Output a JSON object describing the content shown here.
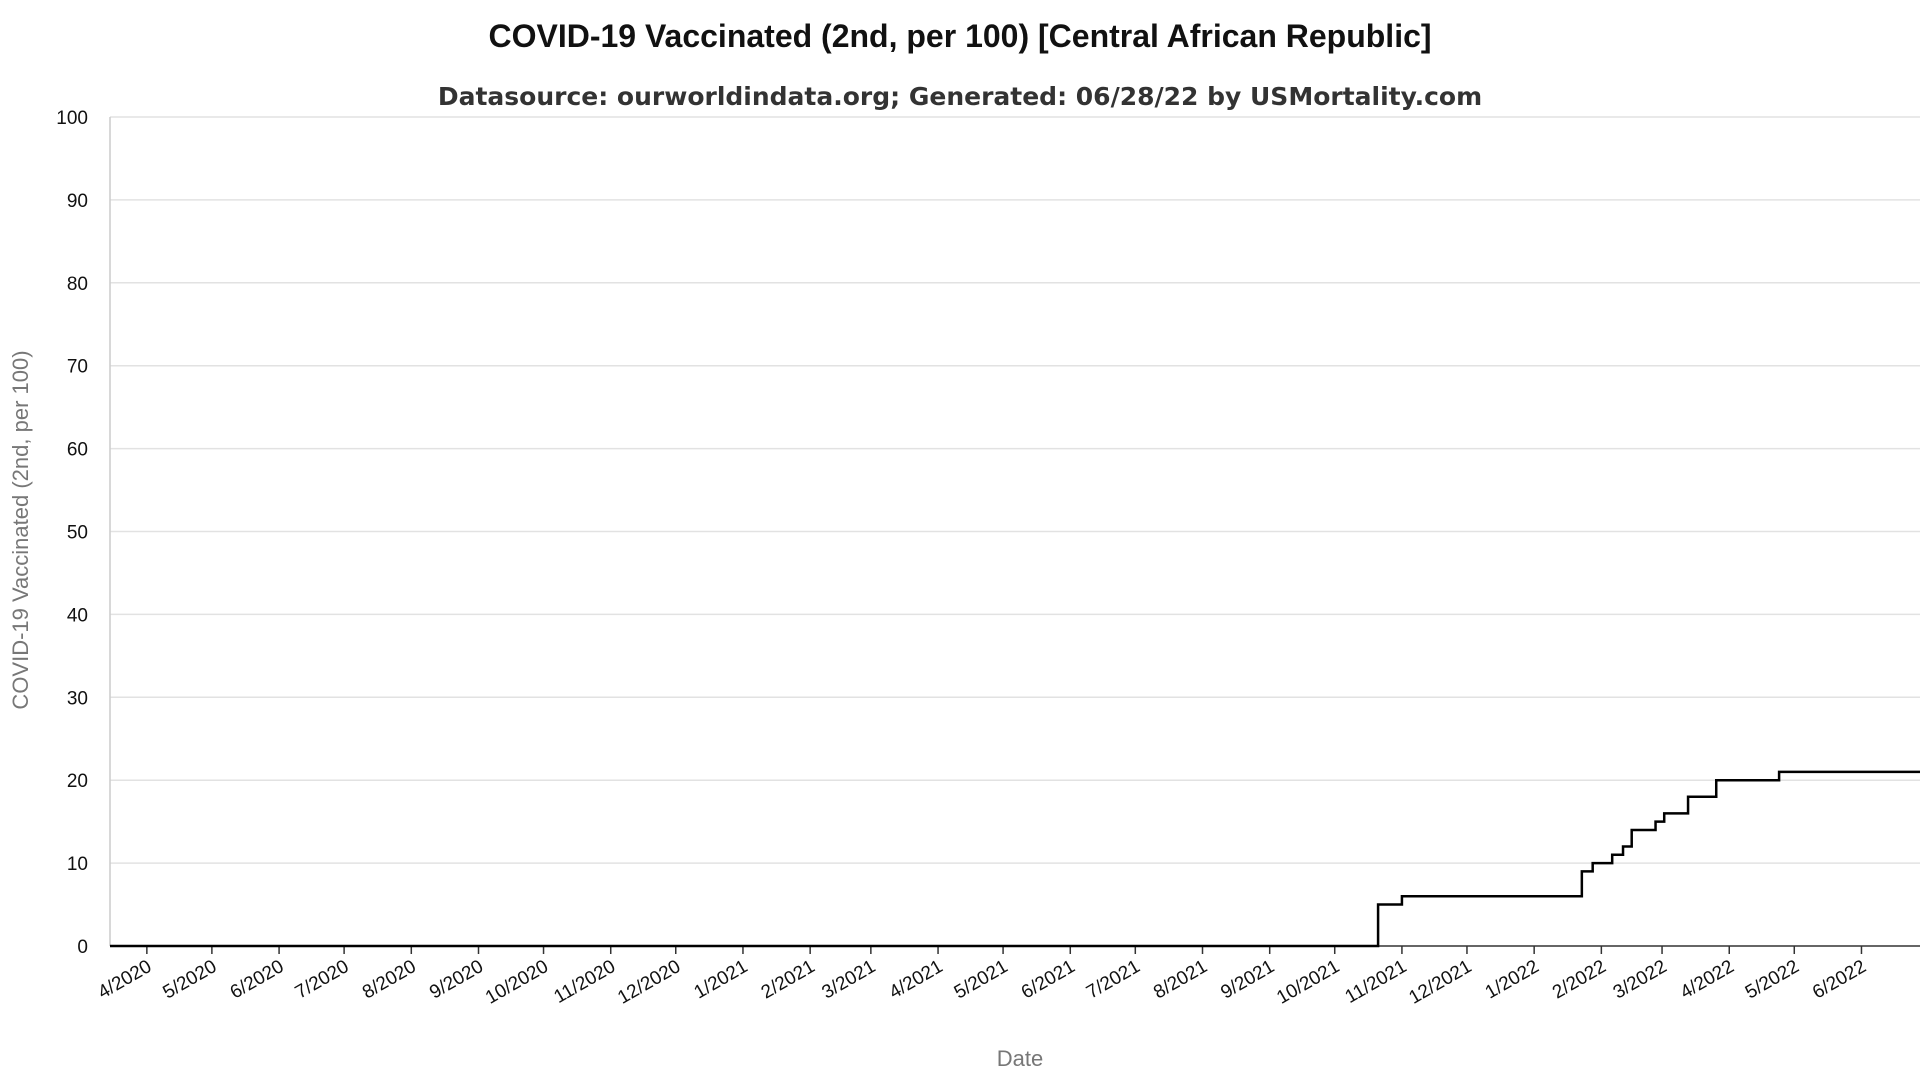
{
  "chart_data": {
    "type": "line",
    "title": "COVID-19 Vaccinated (2nd, per 100) [Central African Republic]",
    "subtitle": "Datasource: ourworldindata.org; Generated: 06/28/22 by USMortality.com",
    "xlabel": "Date",
    "ylabel": "COVID-19 Vaccinated (2nd, per 100)",
    "ylim": [
      0,
      100
    ],
    "yticks": [
      "0",
      "10",
      "20",
      "30",
      "40",
      "50",
      "60",
      "70",
      "80",
      "90",
      "100"
    ],
    "xlim": [
      "2020-03-15",
      "2022-06-28"
    ],
    "xticks": [
      {
        "label": "4/2020",
        "date": "2020-04-01"
      },
      {
        "label": "5/2020",
        "date": "2020-05-01"
      },
      {
        "label": "6/2020",
        "date": "2020-06-01"
      },
      {
        "label": "7/2020",
        "date": "2020-07-01"
      },
      {
        "label": "8/2020",
        "date": "2020-08-01"
      },
      {
        "label": "9/2020",
        "date": "2020-09-01"
      },
      {
        "label": "10/2020",
        "date": "2020-10-01"
      },
      {
        "label": "11/2020",
        "date": "2020-11-01"
      },
      {
        "label": "12/2020",
        "date": "2020-12-01"
      },
      {
        "label": "1/2021",
        "date": "2021-01-01"
      },
      {
        "label": "2/2021",
        "date": "2021-02-01"
      },
      {
        "label": "3/2021",
        "date": "2021-03-01"
      },
      {
        "label": "4/2021",
        "date": "2021-04-01"
      },
      {
        "label": "5/2021",
        "date": "2021-05-01"
      },
      {
        "label": "6/2021",
        "date": "2021-06-01"
      },
      {
        "label": "7/2021",
        "date": "2021-07-01"
      },
      {
        "label": "8/2021",
        "date": "2021-08-01"
      },
      {
        "label": "9/2021",
        "date": "2021-09-01"
      },
      {
        "label": "10/2021",
        "date": "2021-10-01"
      },
      {
        "label": "11/2021",
        "date": "2021-11-01"
      },
      {
        "label": "12/2021",
        "date": "2021-12-01"
      },
      {
        "label": "1/2022",
        "date": "2022-01-01"
      },
      {
        "label": "2/2022",
        "date": "2022-02-01"
      },
      {
        "label": "3/2022",
        "date": "2022-03-01"
      },
      {
        "label": "4/2022",
        "date": "2022-04-01"
      },
      {
        "label": "5/2022",
        "date": "2022-05-01"
      },
      {
        "label": "6/2022",
        "date": "2022-06-01"
      }
    ],
    "grid": true,
    "line_color": "#000000",
    "step": true,
    "series": [
      {
        "x": [
          "2020-03-15",
          "2021-10-20",
          "2021-10-21",
          "2021-11-01",
          "2022-01-23",
          "2022-01-28",
          "2022-02-06",
          "2022-02-11",
          "2022-02-15",
          "2022-02-26",
          "2022-03-02",
          "2022-03-13",
          "2022-03-26",
          "2022-04-24",
          "2022-05-18",
          "2022-06-28"
        ],
        "y": [
          0,
          0,
          5,
          6,
          9,
          10,
          11,
          12,
          14,
          15,
          16,
          18,
          20,
          21,
          21,
          21
        ]
      }
    ]
  }
}
